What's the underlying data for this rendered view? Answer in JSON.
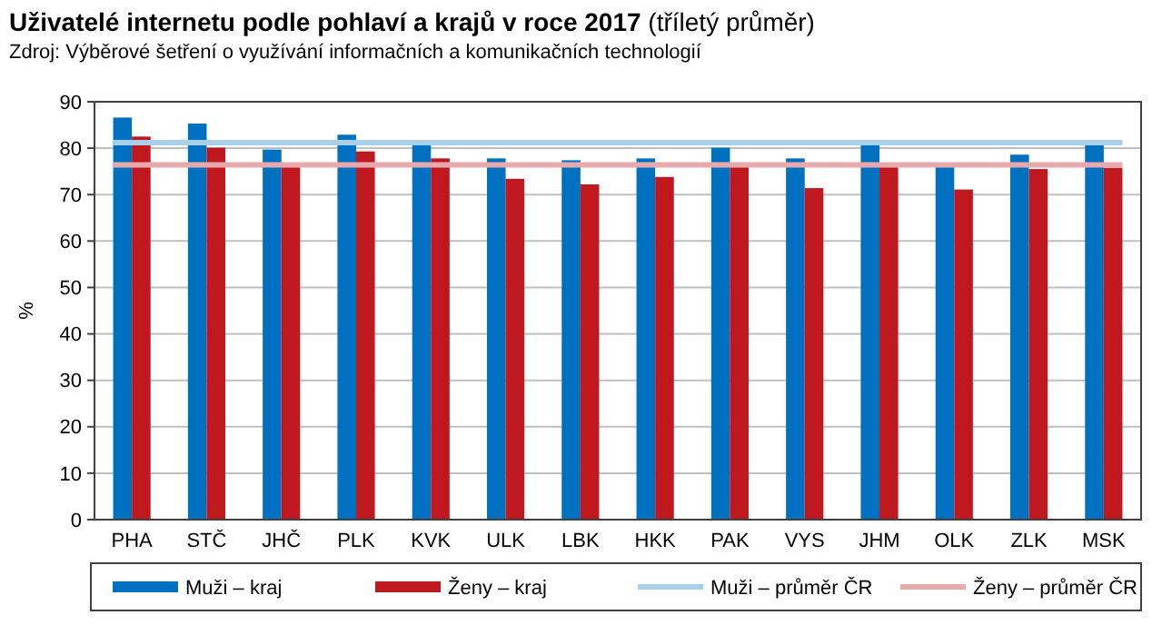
{
  "chart_data": {
    "type": "bar",
    "title": "Uživatelé internetu podle pohlaví a krajů v roce 2017 (tříletý průměr)",
    "annotations": [
      "Zdroj: Výběrové šetření o využívání informačních a komunikačních technologií"
    ],
    "ylabel": "%",
    "categories": [
      "PHA",
      "STČ",
      "JHČ",
      "PLK",
      "KVK",
      "ULK",
      "LBK",
      "HKK",
      "PAK",
      "VYS",
      "JHM",
      "OLK",
      "ZLK",
      "MSK"
    ],
    "series": [
      {
        "name": "Muži – kraj",
        "color": "#0070c0",
        "values": [
          86.6,
          85.3,
          79.7,
          82.9,
          80.7,
          77.8,
          77.4,
          77.8,
          80.1,
          77.8,
          80.7,
          75.9,
          78.6,
          80.7
        ]
      },
      {
        "name": "Ženy – kraj",
        "color": "#c0181f",
        "values": [
          82.5,
          80.1,
          75.9,
          79.3,
          77.8,
          73.4,
          72.2,
          73.8,
          75.9,
          71.4,
          75.9,
          71.1,
          75.5,
          75.8
        ]
      }
    ],
    "ref_lines": [
      {
        "axis": "y",
        "value": 81.2,
        "label": "Muži – průměr ČR",
        "color": "#a9cfe9"
      },
      {
        "axis": "y",
        "value": 76.4,
        "label": "Ženy – průměr ČR",
        "color": "#e8a9ad"
      }
    ],
    "ylim": [
      0,
      90
    ],
    "yticks": [
      0,
      10,
      20,
      30,
      40,
      50,
      60,
      70,
      80,
      90
    ],
    "grid": "y",
    "legend": "bottom"
  }
}
